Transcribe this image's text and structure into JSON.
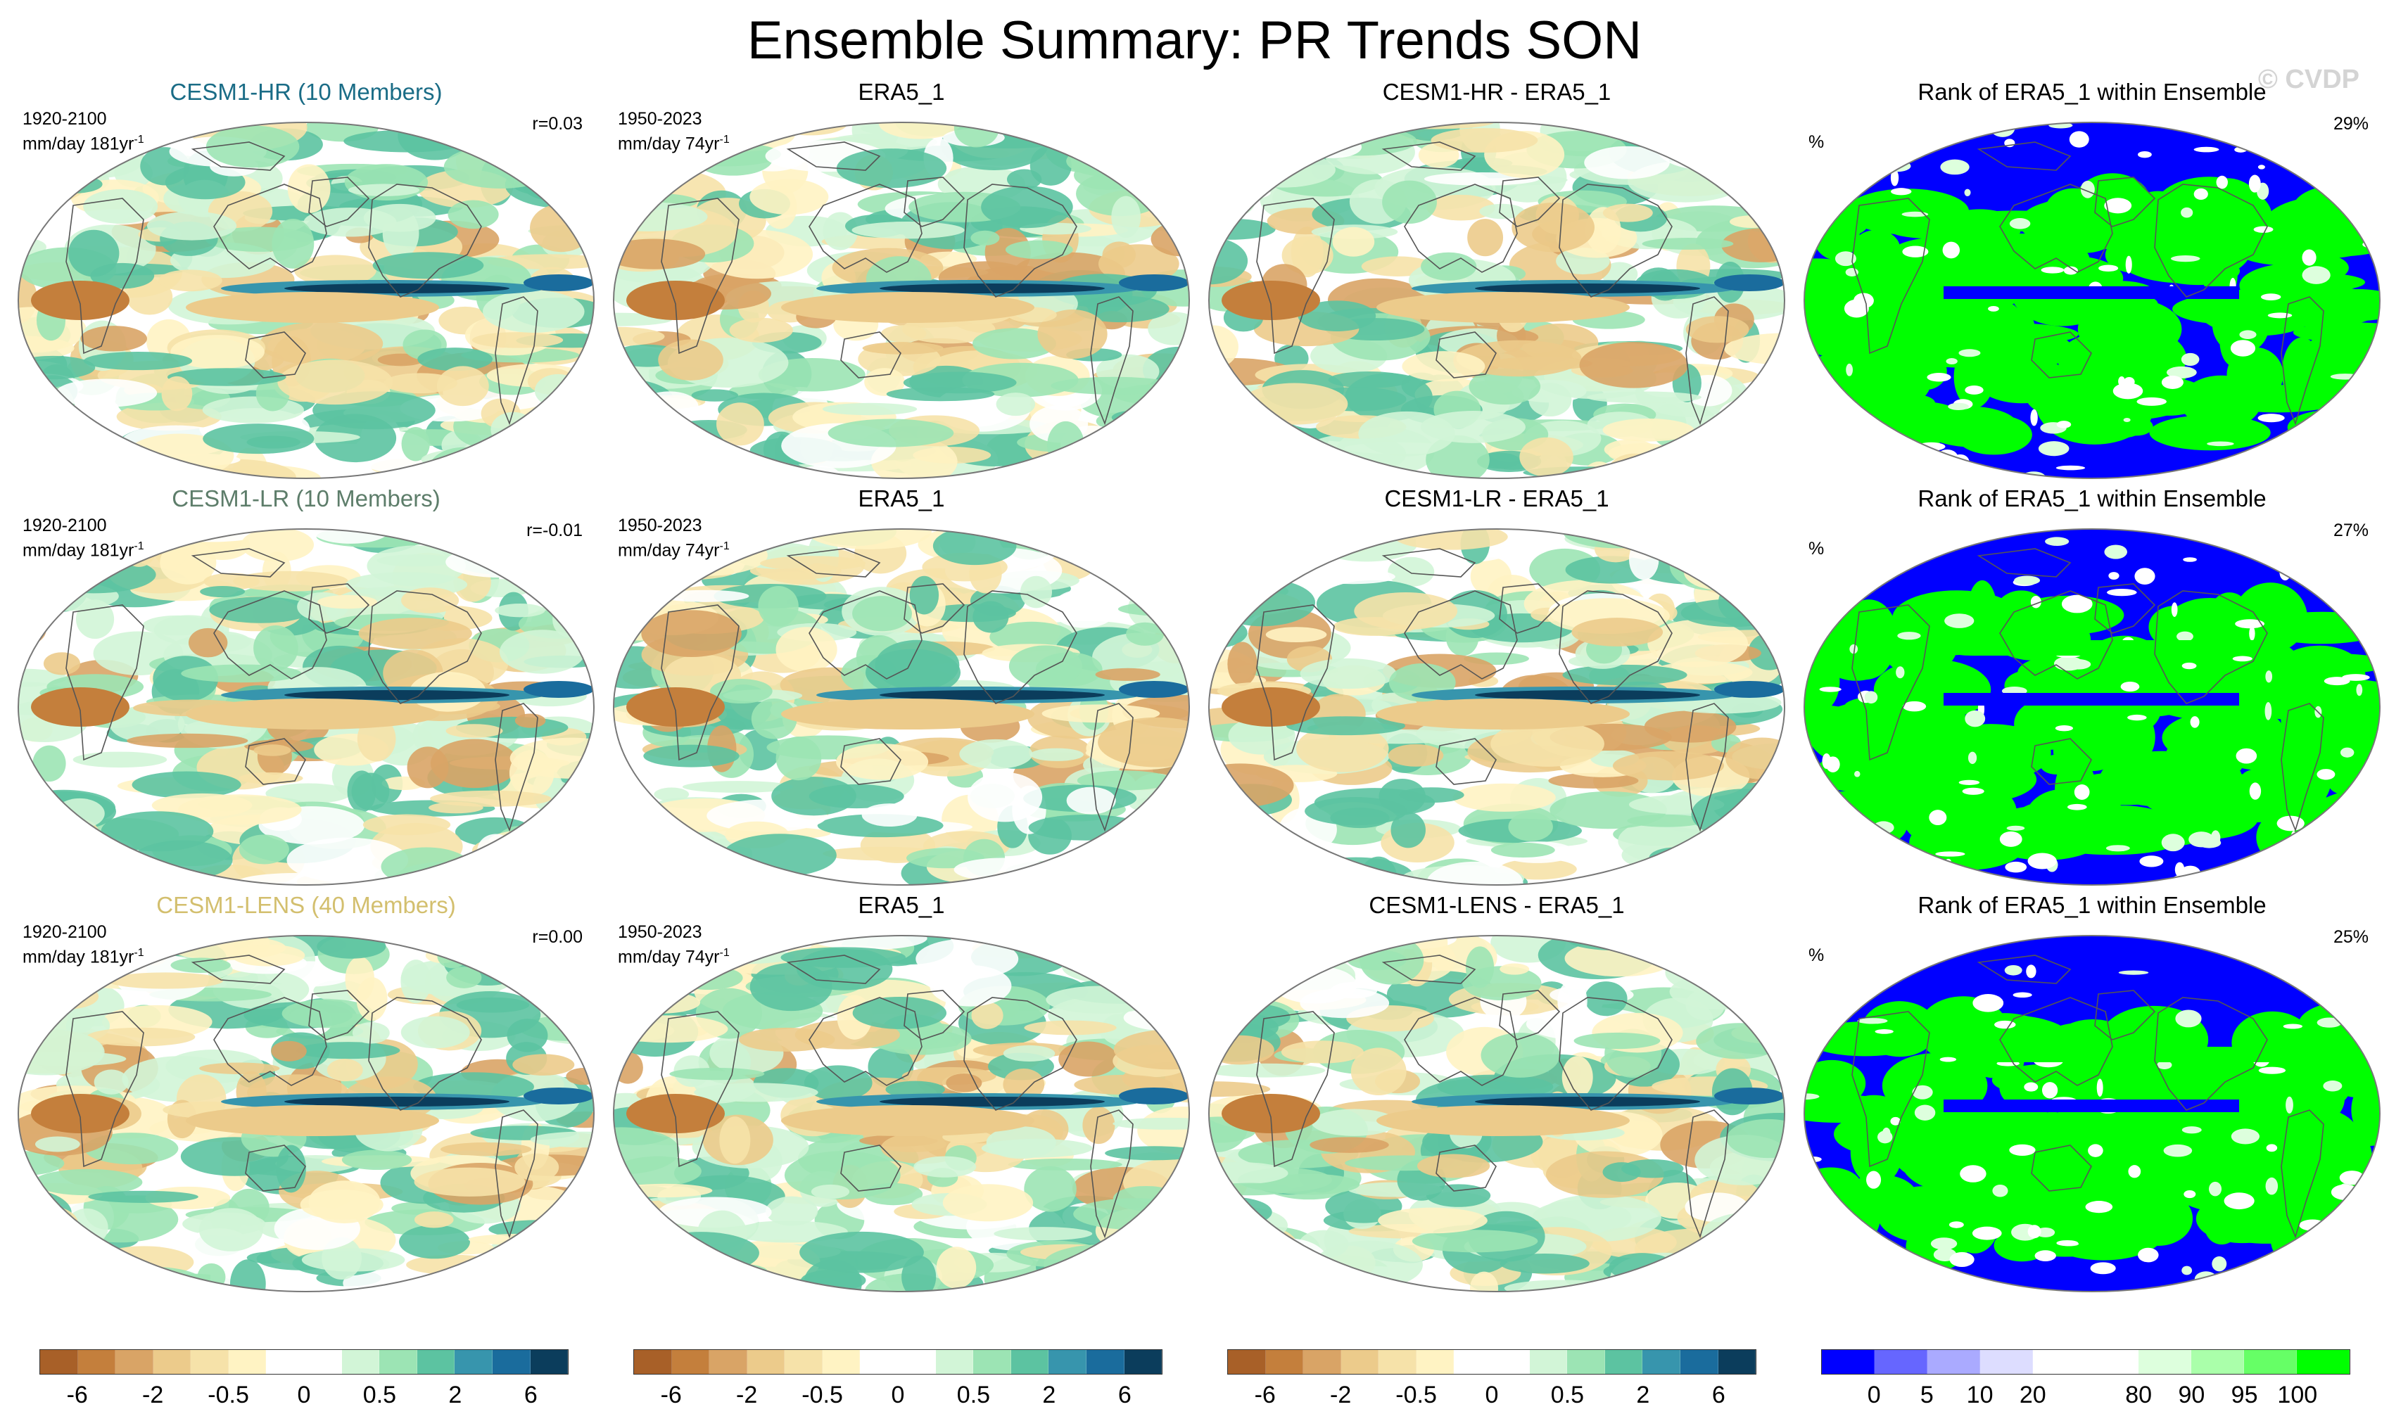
{
  "title": "Ensemble Summary: PR Trends SON",
  "watermark": "© CVDP",
  "colors": {
    "diverging": [
      "#a86028",
      "#c47f3c",
      "#d9a466",
      "#eccb8b",
      "#f6e2a9",
      "#fff3c3",
      "#ffffff",
      "#ffffff",
      "#d2f5d7",
      "#9ce4b4",
      "#5cc3a1",
      "#3795ad",
      "#1a6c9d",
      "#0b3d5c"
    ],
    "rank": [
      "#0000ff",
      "#6666ff",
      "#aaaaff",
      "#ddddff",
      "#ffffff",
      "#ffffff",
      "#ddffdd",
      "#aaffaa",
      "#66ff66",
      "#00ff00"
    ],
    "title_hr": "#1a6c86",
    "title_lr": "#5d7d6a",
    "title_lens": "#d3bf6e"
  },
  "rows": [
    {
      "ens": {
        "title": "CESM1-HR (10 Members)",
        "years": "1920-2100",
        "units": "mm/day 181yr",
        "r": "r=0.03",
        "color_key": "title_hr"
      },
      "obs": {
        "title": "ERA5_1",
        "years": "1950-2023",
        "units": "mm/day 74yr"
      },
      "diff": {
        "title": "CESM1-HR - ERA5_1"
      },
      "rank": {
        "title": "Rank of ERA5_1 within Ensemble",
        "unit": "%",
        "value": "29%"
      }
    },
    {
      "ens": {
        "title": "CESM1-LR (10 Members)",
        "years": "1920-2100",
        "units": "mm/day 181yr",
        "r": "r=-0.01",
        "color_key": "title_lr"
      },
      "obs": {
        "title": "ERA5_1",
        "years": "1950-2023",
        "units": "mm/day 74yr"
      },
      "diff": {
        "title": "CESM1-LR - ERA5_1"
      },
      "rank": {
        "title": "Rank of ERA5_1 within Ensemble",
        "unit": "%",
        "value": "27%"
      }
    },
    {
      "ens": {
        "title": "CESM1-LENS (40 Members)",
        "years": "1920-2100",
        "units": "mm/day 181yr",
        "r": "r=0.00",
        "color_key": "title_lens"
      },
      "obs": {
        "title": "ERA5_1",
        "years": "1950-2023",
        "units": "mm/day 74yr"
      },
      "diff": {
        "title": "CESM1-LENS - ERA5_1"
      },
      "rank": {
        "title": "Rank of ERA5_1 within Ensemble",
        "unit": "%",
        "value": "25%"
      }
    }
  ],
  "units_sup": "-1",
  "colorbars": {
    "trend_labels": [
      "-6",
      "-2",
      "-0.5",
      "0",
      "0.5",
      "2",
      "6"
    ],
    "rank_labels": [
      "0",
      "5",
      "10",
      "20",
      "80",
      "90",
      "95",
      "100"
    ]
  }
}
